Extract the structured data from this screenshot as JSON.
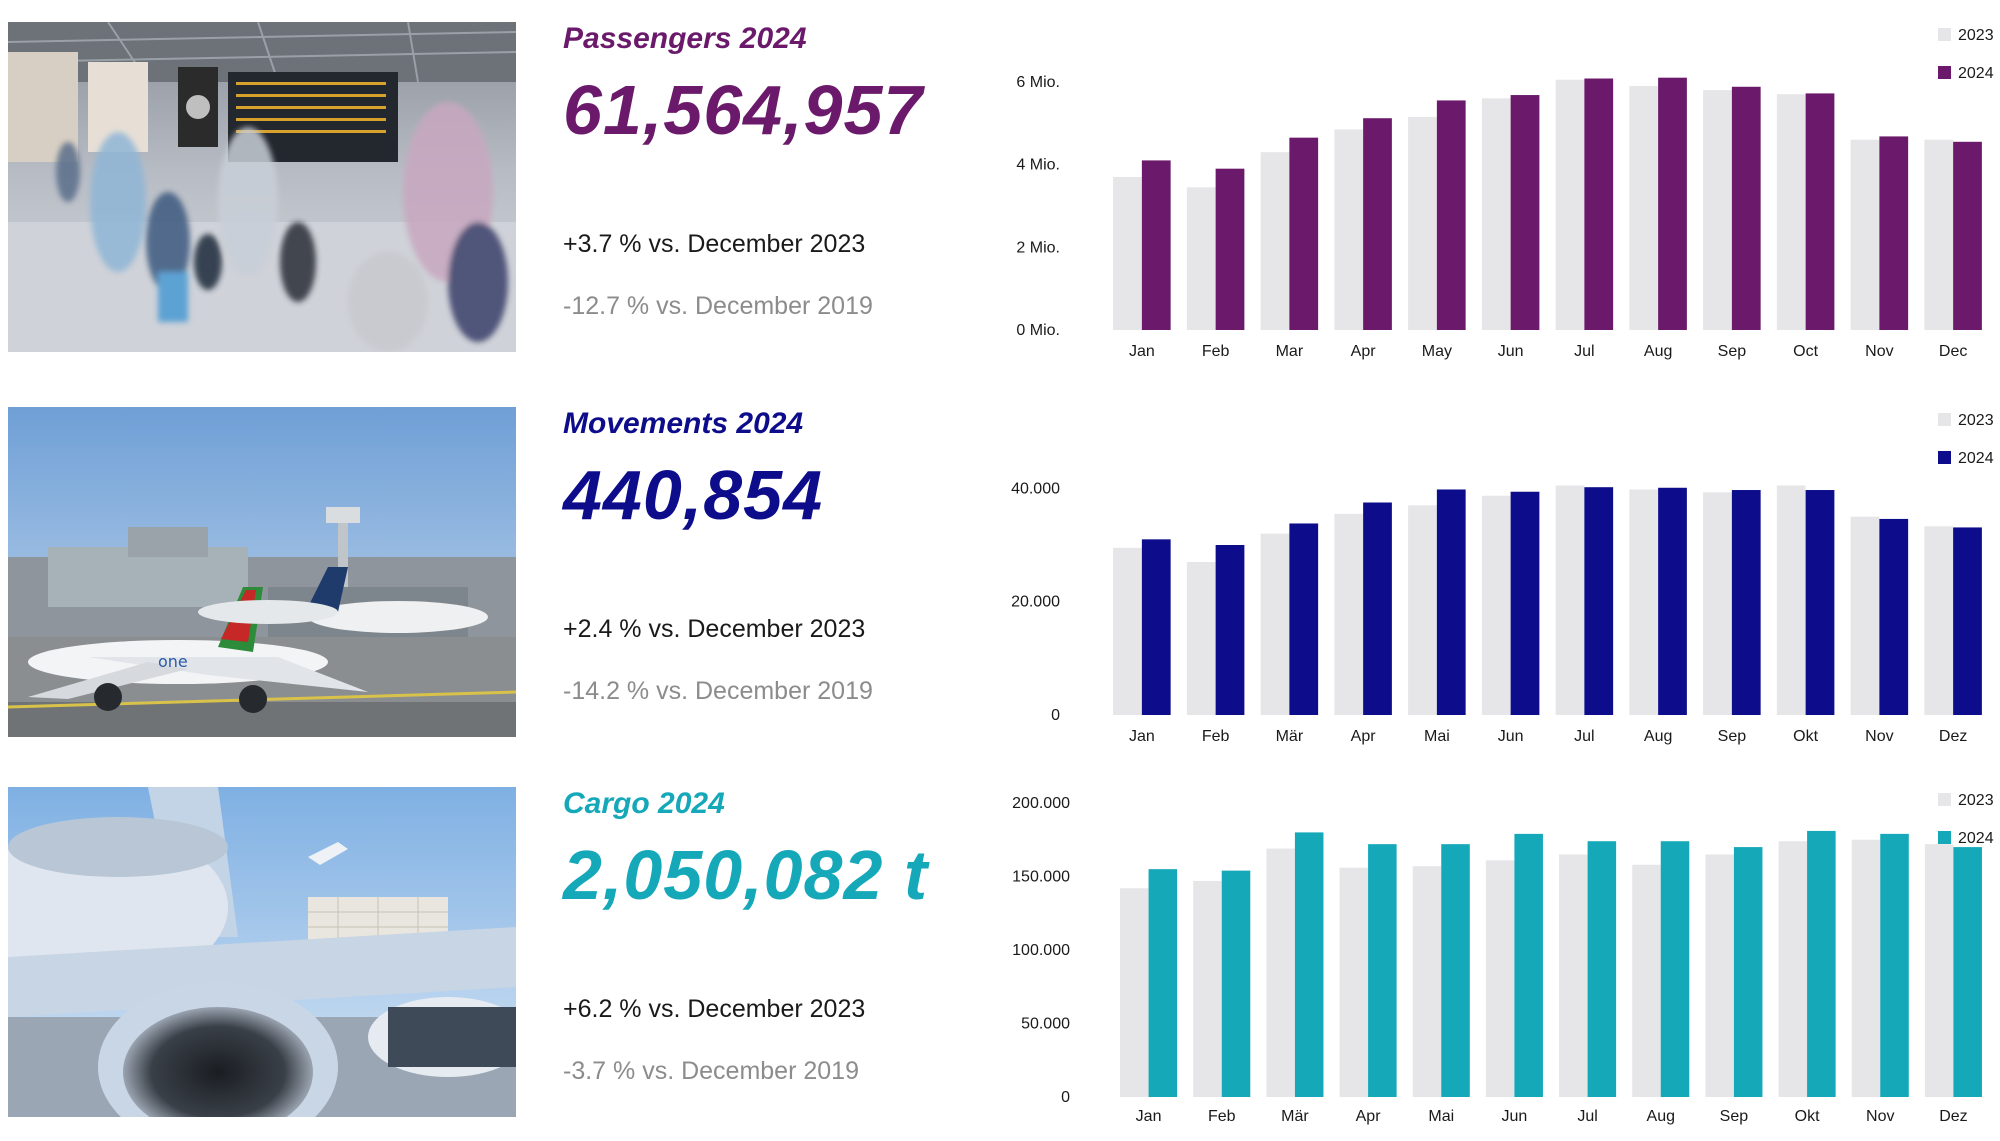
{
  "panels": [
    {
      "key": "passengers",
      "title": "Passengers 2024",
      "value": "61,564,957",
      "yoy": "+3.7 % vs. December 2023",
      "vs2019": "-12.7 % vs. December 2019",
      "accent": "#6b1a6b",
      "photo_subject": "airport-terminal-passengers"
    },
    {
      "key": "movements",
      "title": "Movements 2024",
      "value": "440,854",
      "yoy": "+2.4 % vs. December 2023",
      "vs2019": "-14.2 % vs. December 2019",
      "accent": "#0d0d8c",
      "photo_subject": "aircraft-on-apron"
    },
    {
      "key": "cargo",
      "title": "Cargo 2024",
      "value": "2,050,082 t",
      "yoy": "+6.2 % vs. December 2023",
      "vs2019": "-3.7 % vs. December 2019",
      "accent": "#14a8b8",
      "photo_subject": "cargo-aircraft-loading"
    }
  ],
  "chart_data": [
    {
      "type": "bar",
      "categories": [
        "Jan",
        "Feb",
        "Mar",
        "Apr",
        "May",
        "Jun",
        "Jul",
        "Aug",
        "Sep",
        "Oct",
        "Nov",
        "Dec"
      ],
      "series": [
        {
          "name": "2023",
          "color": "#e6e6e8",
          "values": [
            3.7,
            3.45,
            4.3,
            4.85,
            5.15,
            5.6,
            6.05,
            5.9,
            5.8,
            5.7,
            4.6,
            4.6
          ]
        },
        {
          "name": "2024",
          "color": "#6b1a6b",
          "values": [
            4.1,
            3.9,
            4.65,
            5.12,
            5.55,
            5.68,
            6.08,
            6.1,
            5.88,
            5.72,
            4.68,
            4.55
          ]
        }
      ],
      "yticks": [
        "0 Mio.",
        "2 Mio.",
        "4 Mio.",
        "6 Mio."
      ],
      "ytick_values": [
        0,
        2,
        4,
        6
      ],
      "ylim": [
        0,
        6.6
      ],
      "legend": "top-right",
      "grid": false
    },
    {
      "type": "bar",
      "categories": [
        "Jan",
        "Feb",
        "Mär",
        "Apr",
        "Mai",
        "Jun",
        "Jul",
        "Aug",
        "Sep",
        "Okt",
        "Nov",
        "Dez"
      ],
      "series": [
        {
          "name": "2023",
          "color": "#e6e6e8",
          "values": [
            29500,
            27000,
            32000,
            35500,
            37000,
            38700,
            40500,
            39800,
            39300,
            40500,
            35000,
            33300
          ]
        },
        {
          "name": "2024",
          "color": "#0d0d8c",
          "values": [
            31000,
            30000,
            33800,
            37500,
            39800,
            39400,
            40200,
            40100,
            39700,
            39700,
            34600,
            33100
          ]
        }
      ],
      "yticks": [
        "0",
        "20.000",
        "40.000"
      ],
      "ytick_values": [
        0,
        20000,
        40000
      ],
      "ylim": [
        0,
        42000
      ],
      "legend": "top-right",
      "grid": false
    },
    {
      "type": "bar",
      "categories": [
        "Jan",
        "Feb",
        "Mär",
        "Apr",
        "Mai",
        "Jun",
        "Jul",
        "Aug",
        "Sep",
        "Okt",
        "Nov",
        "Dez"
      ],
      "series": [
        {
          "name": "2023",
          "color": "#e6e6e8",
          "values": [
            142000,
            147000,
            169000,
            156000,
            157000,
            161000,
            165000,
            158000,
            165000,
            174000,
            175000,
            172000
          ]
        },
        {
          "name": "2024",
          "color": "#14a8b8",
          "values": [
            155000,
            154000,
            180000,
            172000,
            172000,
            179000,
            174000,
            174000,
            170000,
            181000,
            179000,
            170000
          ]
        }
      ],
      "yticks": [
        "0",
        "50.000",
        "100.000",
        "150.000",
        "200.000"
      ],
      "ytick_values": [
        0,
        50000,
        100000,
        150000,
        200000
      ],
      "ylim": [
        0,
        200000
      ],
      "legend": "top-right",
      "grid": false
    }
  ]
}
